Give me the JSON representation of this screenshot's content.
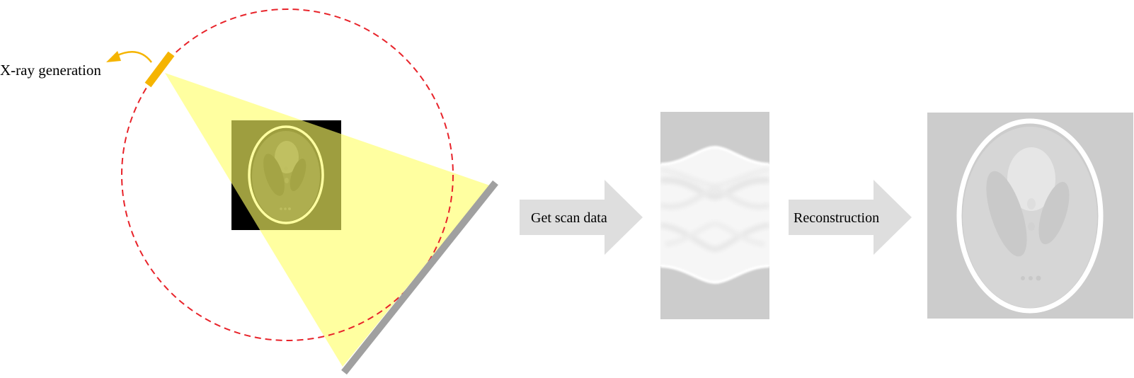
{
  "labels": {
    "xray_generation": "X-ray generation",
    "get_scan_data": "Get scan data",
    "reconstruction": "Reconstruction"
  },
  "colors": {
    "orbit": "#e8232a",
    "source": "#f5b400",
    "beam": "#ffff66",
    "detector": "#a0a0a0",
    "arrow": "#dedede",
    "phantom_bg": "#000000",
    "panel_bg": "#cccccc"
  },
  "icons": {
    "source": "x-ray-source-icon",
    "rotation": "rotation-arrow-icon",
    "detector": "detector-icon"
  }
}
